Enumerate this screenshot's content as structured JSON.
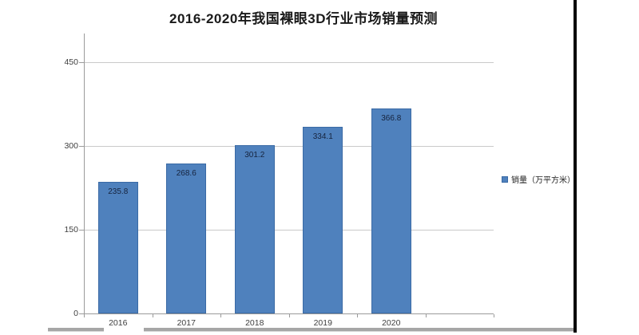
{
  "title": "2016-2020年我国裸眼3D行业市场销量预测",
  "legend": {
    "label": "销量（万平方米）"
  },
  "colors": {
    "bar_fill": "#4f81bd",
    "bar_border": "#3a6aa5",
    "gridline": "#c9c9c9",
    "axis_line": "#9b9b9b",
    "title_text": "#1a1a1a",
    "tick_text": "#3f3f3f",
    "bar_label_text": "#16233d",
    "frame_line": "#060606",
    "scrollbar_gray": "#a6a6a6"
  },
  "chart_data": {
    "type": "bar",
    "title": "2016-2020年我国裸眼3D行业市场销量预测",
    "categories": [
      "2016",
      "2017",
      "2018",
      "2019",
      "2020"
    ],
    "series": [
      {
        "name": "销量（万平方米）",
        "values": [
          235.8,
          268.6,
          301.2,
          334.1,
          366.8
        ]
      }
    ],
    "xlabel": "",
    "ylabel": "",
    "ylim": [
      0,
      500
    ],
    "yticks": [
      0,
      150,
      300,
      450
    ],
    "grid": true,
    "legend_position": "right",
    "data_labels": "inside-top"
  }
}
